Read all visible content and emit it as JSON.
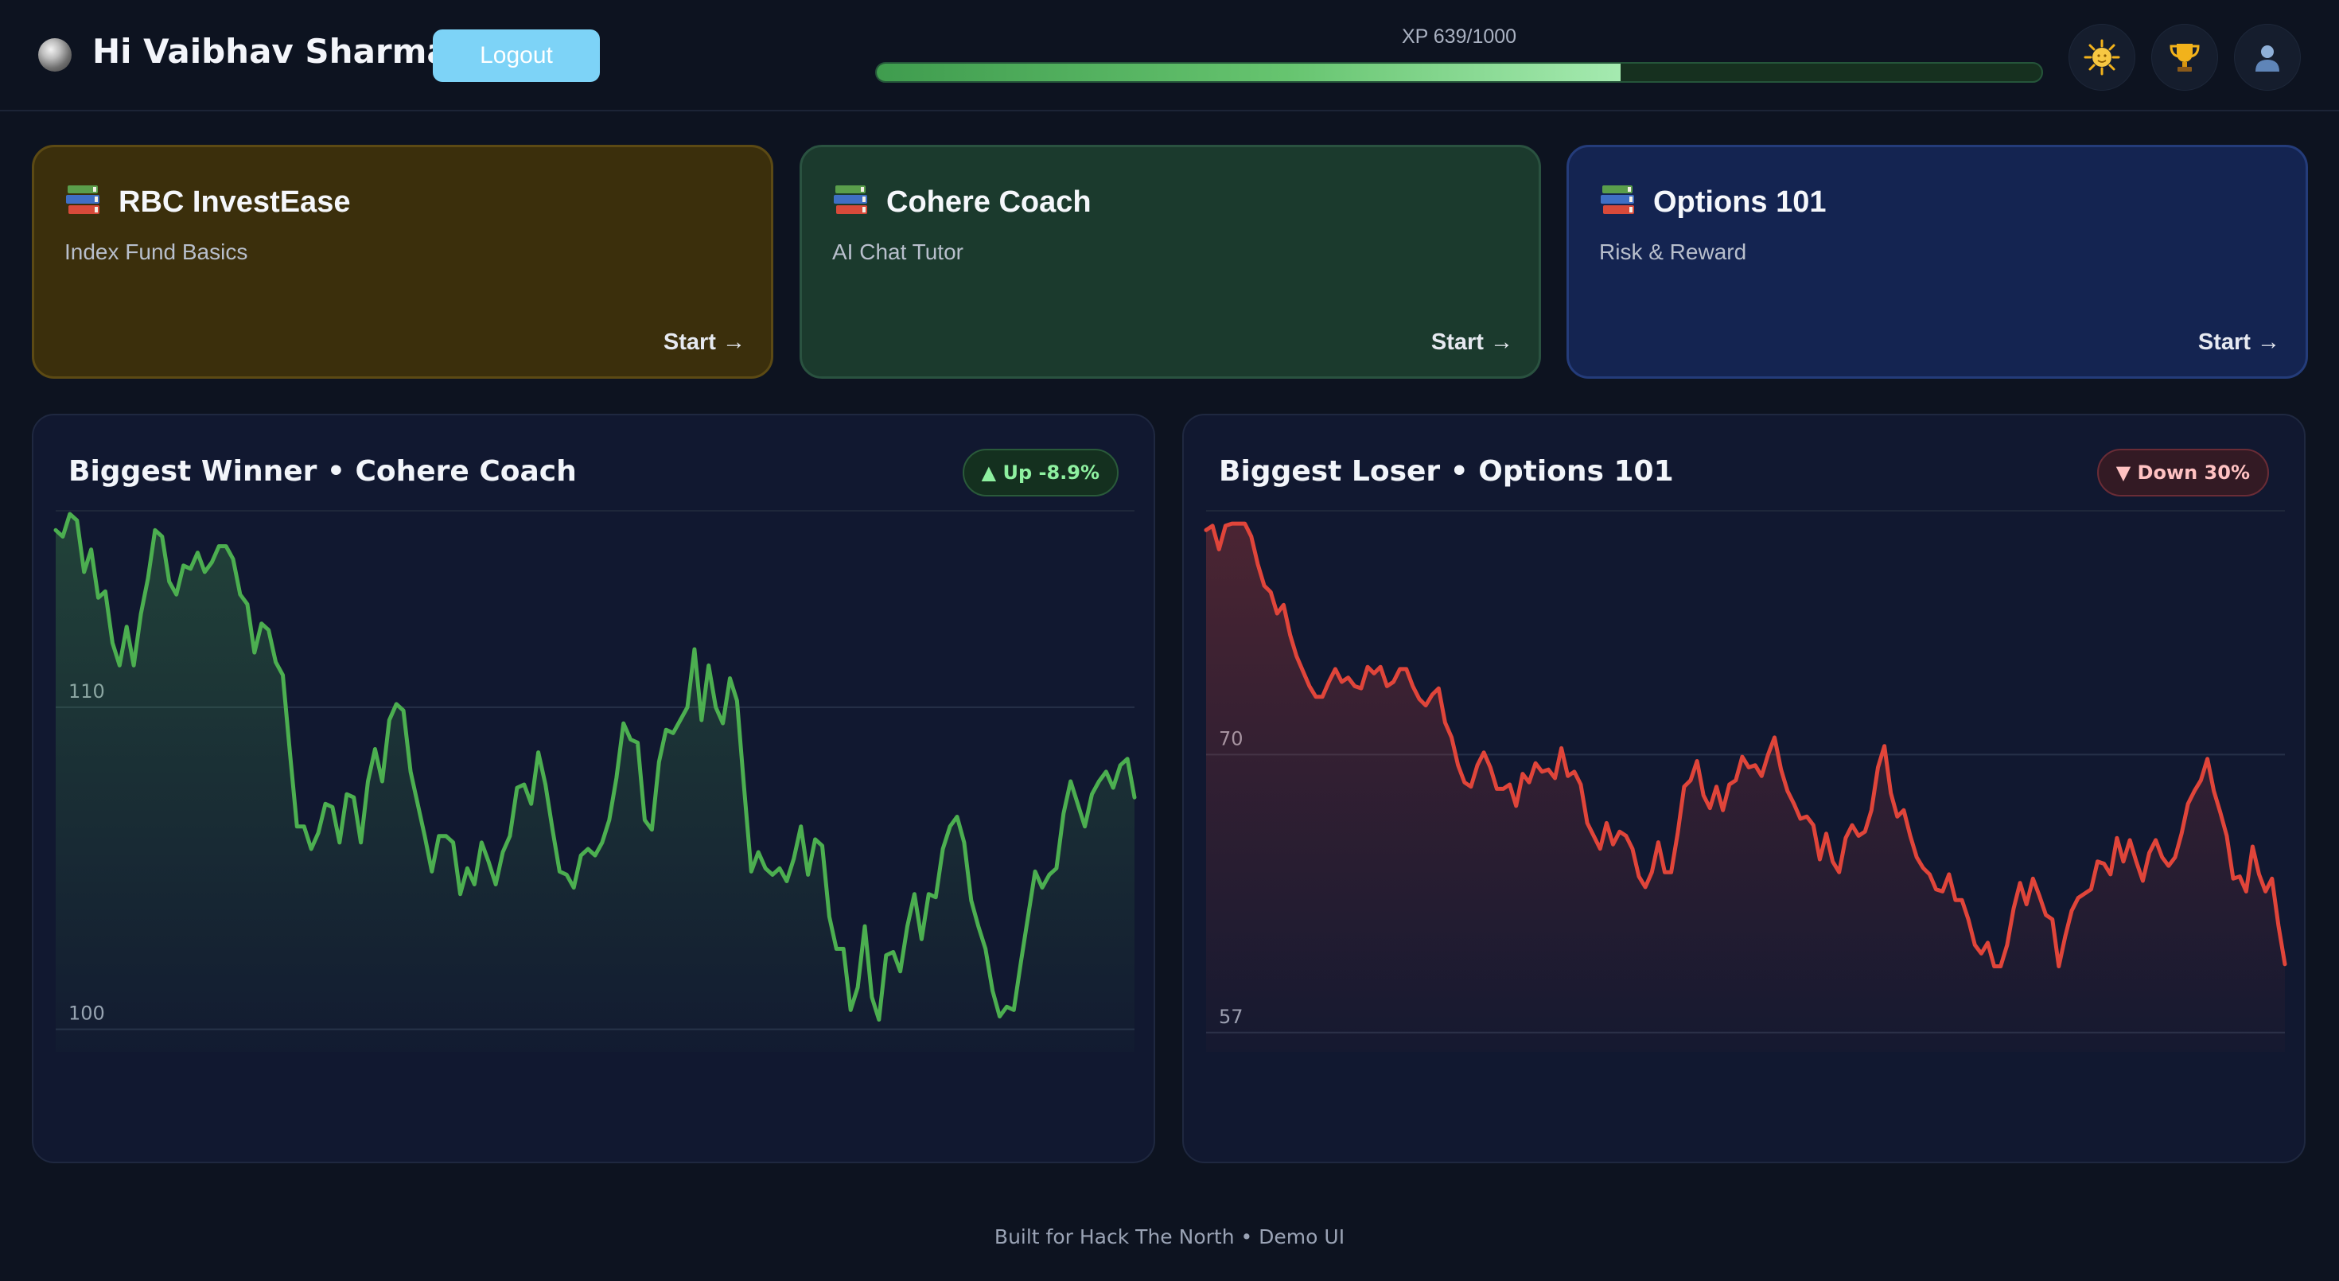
{
  "header": {
    "greeting": "Hi Vaibhav Sharma",
    "logout_label": "Logout",
    "xp_label": "XP 639/1000",
    "xp_current": 639,
    "xp_max": 1000,
    "icons": [
      "sun-icon",
      "trophy-icon",
      "user-icon"
    ]
  },
  "cards": [
    {
      "icon": "books-icon",
      "title": "RBC InvestEase",
      "subtitle": "Index Fund Basics",
      "start": "Start →",
      "color": "#3b2f0c"
    },
    {
      "icon": "books-icon",
      "title": "Cohere Coach",
      "subtitle": "AI Chat Tutor",
      "start": "Start →",
      "color": "#1b3a2d"
    },
    {
      "icon": "books-icon",
      "title": "Options 101",
      "subtitle": "Risk & Reward",
      "start": "Start →",
      "color": "#142451"
    }
  ],
  "panels": {
    "winner": {
      "title": "Biggest Winner • Cohere Coach",
      "badge": "▲ Up -8.9%",
      "color": "#4caf50"
    },
    "loser": {
      "title": "Biggest Loser • Options 101",
      "badge": "▼ Down 30%",
      "color": "#e0453a"
    }
  },
  "chart_data": [
    {
      "type": "line",
      "series": [
        {
          "values": [
            115.5,
            115.3,
            116.0,
            115.8,
            114.2,
            114.9,
            113.4,
            113.6,
            112.0,
            111.3,
            112.5,
            111.3,
            112.9,
            114.0,
            115.5,
            115.3,
            113.9,
            113.5,
            114.4,
            114.3,
            114.8,
            114.2,
            114.5,
            115.0,
            115.0,
            114.6,
            113.5,
            113.2,
            111.7,
            112.6,
            112.4,
            111.4,
            111.0,
            108.6,
            106.3,
            106.3,
            105.6,
            106.1,
            107.0,
            106.9,
            105.8,
            107.3,
            107.2,
            105.8,
            107.7,
            108.7,
            107.7,
            109.6,
            110.1,
            109.9,
            108.0,
            107.0,
            106.0,
            104.9,
            106.0,
            106.0,
            105.8,
            104.2,
            105.0,
            104.5,
            105.8,
            105.2,
            104.5,
            105.5,
            106.0,
            107.5,
            107.6,
            107.0,
            108.6,
            107.6,
            106.2,
            104.9,
            104.8,
            104.4,
            105.4,
            105.6,
            105.4,
            105.8,
            106.5,
            107.8,
            109.5,
            109.0,
            108.9,
            106.5,
            106.2,
            108.3,
            109.3,
            109.2,
            109.6,
            110.0,
            111.8,
            109.6,
            111.3,
            110.0,
            109.5,
            110.9,
            110.2,
            107.5,
            104.9,
            105.5,
            105.0,
            104.8,
            105.0,
            104.6,
            105.3,
            106.3,
            104.8,
            105.9,
            105.7,
            103.5,
            102.5,
            102.5,
            100.6,
            101.3,
            103.2,
            101.0,
            100.3,
            102.3,
            102.4,
            101.8,
            103.2,
            104.2,
            102.8,
            104.2,
            104.1,
            105.6,
            106.3,
            106.6,
            105.8,
            104.0,
            103.2,
            102.5,
            101.2,
            100.4,
            100.7,
            100.6,
            102.1,
            103.5,
            104.9,
            104.4,
            104.8,
            105.0,
            106.7,
            107.7,
            107.0,
            106.3,
            107.3,
            107.7,
            108.0,
            107.5,
            108.2,
            108.4,
            107.2
          ]
        }
      ],
      "ylim": [
        99.3,
        116.1
      ],
      "yticks": [
        100,
        110
      ],
      "grid": true
    },
    {
      "type": "line",
      "series": [
        {
          "values": [
            80.5,
            80.7,
            79.6,
            80.7,
            80.8,
            80.8,
            80.8,
            80.2,
            78.9,
            77.9,
            77.6,
            76.6,
            77.0,
            75.6,
            74.6,
            73.9,
            73.2,
            72.7,
            72.7,
            73.4,
            74.0,
            73.4,
            73.6,
            73.2,
            73.1,
            74.1,
            73.8,
            74.1,
            73.2,
            73.4,
            74.0,
            74.0,
            73.2,
            72.6,
            72.3,
            72.8,
            73.1,
            71.5,
            70.8,
            69.5,
            68.7,
            68.5,
            69.5,
            70.1,
            69.4,
            68.4,
            68.4,
            68.6,
            67.6,
            69.1,
            68.7,
            69.6,
            69.2,
            69.3,
            68.9,
            70.3,
            69.0,
            69.2,
            68.6,
            66.8,
            66.2,
            65.6,
            66.8,
            65.8,
            66.4,
            66.2,
            65.6,
            64.3,
            63.8,
            64.5,
            65.9,
            64.5,
            64.5,
            66.3,
            68.5,
            68.8,
            69.7,
            68.1,
            67.5,
            68.5,
            67.4,
            68.6,
            68.8,
            69.9,
            69.4,
            69.5,
            69.0,
            70.0,
            70.8,
            69.3,
            68.3,
            67.7,
            67.0,
            67.1,
            66.7,
            65.1,
            66.3,
            65.0,
            64.5,
            66.1,
            66.7,
            66.2,
            66.4,
            67.4,
            69.4,
            70.4,
            68.2,
            67.1,
            67.4,
            66.2,
            65.2,
            64.7,
            64.4,
            63.7,
            63.6,
            64.4,
            63.2,
            63.2,
            62.3,
            61.1,
            60.7,
            61.2,
            60.1,
            60.1,
            61.1,
            62.8,
            64.0,
            63.0,
            64.2,
            63.4,
            62.5,
            62.3,
            60.1,
            61.5,
            62.7,
            63.3,
            63.5,
            63.7,
            65.0,
            64.9,
            64.4,
            66.1,
            65.0,
            66.0,
            65.0,
            64.1,
            65.4,
            66.0,
            65.2,
            64.8,
            65.2,
            66.3,
            67.7,
            68.3,
            68.8,
            69.8,
            68.3,
            67.3,
            66.2,
            64.2,
            64.3,
            63.6,
            65.7,
            64.4,
            63.6,
            64.2,
            62.0,
            60.2
          ]
        }
      ],
      "ylim": [
        56.1,
        81.4
      ],
      "yticks": [
        57,
        70
      ],
      "grid": true
    }
  ],
  "footer": "Built for Hack The North • Demo UI"
}
